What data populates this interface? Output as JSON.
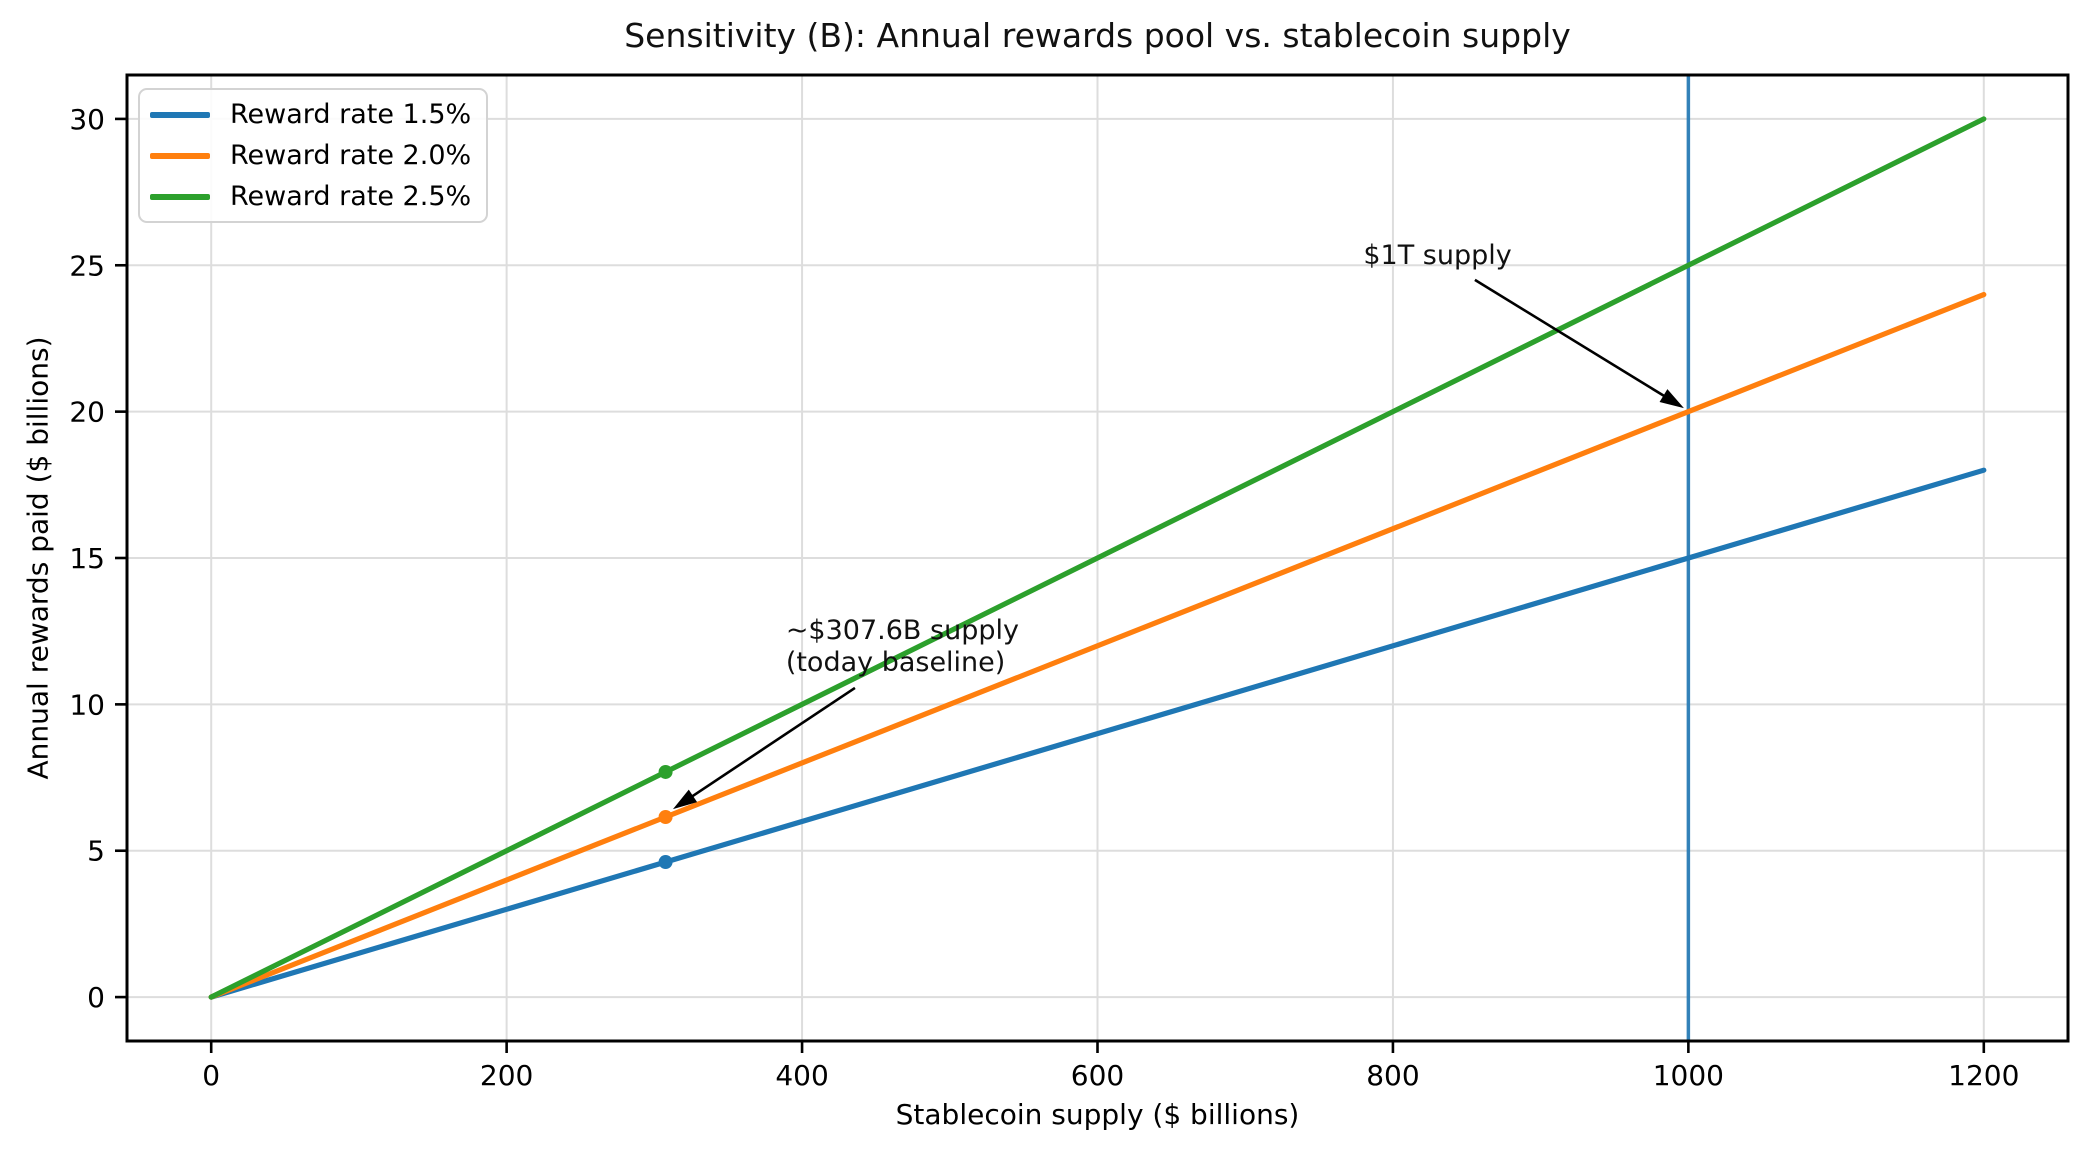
{
  "chart_data": {
    "type": "line",
    "title": "Sensitivity (B): Annual rewards pool vs. stablecoin supply",
    "xlabel": "Stablecoin supply ($ billions)",
    "ylabel": "Annual rewards paid ($ billions)",
    "xlim": [
      -57,
      1257
    ],
    "ylim": [
      -1.5,
      31.5
    ],
    "x_ticks": [
      0,
      200,
      400,
      600,
      800,
      1000,
      1200
    ],
    "y_ticks": [
      0,
      5,
      10,
      15,
      20,
      25,
      30
    ],
    "grid": true,
    "legend_position": "upper-left",
    "series": [
      {
        "name": "Reward rate 1.5%",
        "color": "#1f77b4",
        "reward_rate_pct": 1.5,
        "x": [
          0,
          1200
        ],
        "y": [
          0,
          18
        ],
        "marker_at": {
          "x": 307.6,
          "y": 4.614
        }
      },
      {
        "name": "Reward rate 2.0%",
        "color": "#ff7f0e",
        "reward_rate_pct": 2.0,
        "x": [
          0,
          1200
        ],
        "y": [
          0,
          24
        ],
        "marker_at": {
          "x": 307.6,
          "y": 6.152
        }
      },
      {
        "name": "Reward rate 2.5%",
        "color": "#2ca02c",
        "reward_rate_pct": 2.5,
        "x": [
          0,
          1200
        ],
        "y": [
          0,
          30
        ],
        "marker_at": {
          "x": 307.6,
          "y": 7.69
        }
      }
    ],
    "vline": {
      "x": 1000,
      "color": "#1f77b4"
    },
    "annotations": [
      {
        "text": "$1T supply",
        "xy": [
          1000,
          20
        ],
        "xytext": [
          780,
          25.86
        ],
        "arrow_from": [
          855.5,
          24.5
        ],
        "arrow_to": [
          997,
          20.12
        ]
      },
      {
        "text": "~$307.6B supply\n(today baseline)",
        "xy": [
          307.6,
          6.152
        ],
        "xytext": [
          389,
          13.05
        ],
        "arrow_from": [
          435.8,
          10.56
        ],
        "arrow_to": [
          312.6,
          6.42
        ]
      }
    ]
  },
  "style_colors": {
    "grid": "#dddddd",
    "spine": "#000000",
    "annotation_arrow": "#000000"
  }
}
